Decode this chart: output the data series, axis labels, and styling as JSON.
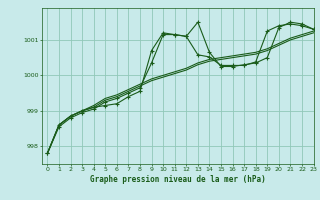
{
  "title": "Graphe pression niveau de la mer (hPa)",
  "background_color": "#c8eaea",
  "grid_color": "#90c8b8",
  "line_color": "#1a5c1a",
  "xlim": [
    -0.5,
    23
  ],
  "ylim": [
    997.5,
    1001.9
  ],
  "yticks": [
    998,
    999,
    1000,
    1001
  ],
  "xticks": [
    0,
    1,
    2,
    3,
    4,
    5,
    6,
    7,
    8,
    9,
    10,
    11,
    12,
    13,
    14,
    15,
    16,
    17,
    18,
    19,
    20,
    21,
    22,
    23
  ],
  "series1": [
    997.8,
    998.6,
    998.85,
    999.0,
    999.1,
    999.15,
    999.2,
    999.4,
    999.55,
    1000.7,
    1001.2,
    1001.15,
    1001.1,
    1001.5,
    1000.65,
    1000.25,
    1000.25,
    1000.3,
    1000.35,
    1000.5,
    1001.35,
    1001.5,
    1001.45,
    1001.3
  ],
  "series2": [
    997.8,
    998.6,
    998.85,
    999.0,
    999.1,
    999.3,
    999.4,
    999.55,
    999.7,
    999.85,
    999.95,
    1000.05,
    1000.15,
    1000.3,
    1000.4,
    1000.45,
    1000.5,
    1000.55,
    1000.6,
    1000.7,
    1000.85,
    1001.0,
    1001.1,
    1001.2
  ],
  "series3": [
    997.8,
    998.6,
    998.85,
    999.0,
    999.15,
    999.35,
    999.45,
    999.6,
    999.75,
    999.9,
    1000.0,
    1000.1,
    1000.2,
    1000.35,
    1000.45,
    1000.5,
    1000.55,
    1000.6,
    1000.65,
    1000.75,
    1000.9,
    1001.05,
    1001.15,
    1001.25
  ],
  "series4": [
    997.8,
    998.55,
    998.8,
    998.95,
    999.05,
    999.25,
    999.35,
    999.5,
    999.65,
    1000.35,
    1001.15,
    1001.15,
    1001.1,
    1000.58,
    1000.52,
    1000.28,
    1000.28,
    1000.28,
    1000.38,
    1001.25,
    1001.4,
    1001.45,
    1001.4,
    1001.3
  ],
  "tick_fontsize": 4.5,
  "xlabel_fontsize": 5.5
}
